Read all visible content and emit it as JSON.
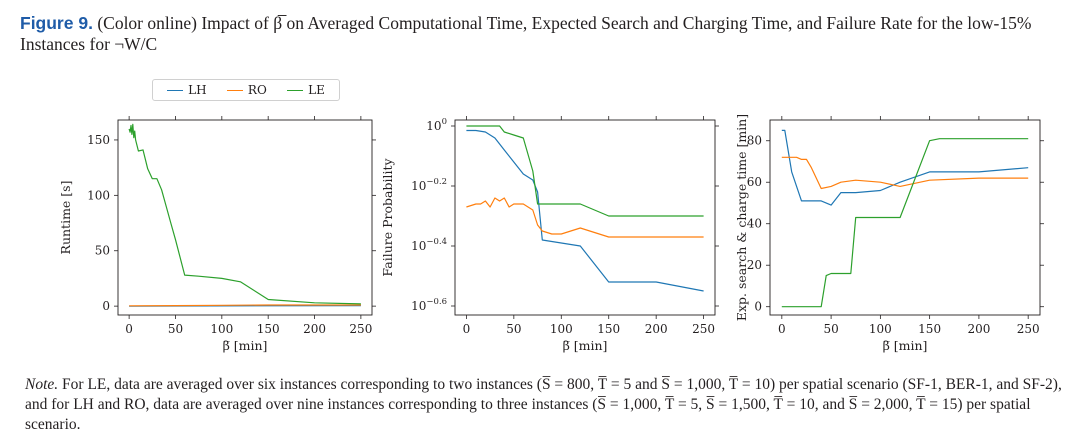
{
  "caption": {
    "label": "Figure 9.",
    "text": "(Color online) Impact of β̅ on Averaged Computational Time, Expected Search and Charging Time, and Failure Rate for the low-15% Instances for ¬W/C"
  },
  "legend": [
    {
      "name": "LH",
      "color": "#1f77b4"
    },
    {
      "name": "RO",
      "color": "#ff7f0e"
    },
    {
      "name": "LE",
      "color": "#2ca02c"
    }
  ],
  "chart_data": [
    {
      "type": "line",
      "ylabel": "Runtime [s]",
      "xlabel": "β̅ [min]",
      "xlim": [
        -12,
        262
      ],
      "ylim": [
        -8,
        168
      ],
      "xticks": [
        0,
        50,
        100,
        150,
        200,
        250
      ],
      "xtick_labels": [
        "0",
        "50",
        "100",
        "150",
        "200",
        "250"
      ],
      "yticks": [
        0,
        50,
        100,
        150
      ],
      "ytick_labels": [
        "0",
        "50",
        "100",
        "150"
      ],
      "series": [
        {
          "name": "LH",
          "x": [
            0,
            250
          ],
          "y": [
            0,
            0.5
          ]
        },
        {
          "name": "RO",
          "x": [
            0,
            50,
            100,
            150,
            200,
            250
          ],
          "y": [
            0.3,
            0.5,
            0.8,
            1.0,
            1.0,
            1.0
          ]
        },
        {
          "name": "LE",
          "x": [
            0,
            1,
            2,
            3,
            4,
            5,
            6,
            7,
            10,
            15,
            20,
            25,
            30,
            35,
            40,
            45,
            50,
            60,
            75,
            100,
            120,
            150,
            200,
            250
          ],
          "y": [
            160,
            157,
            163,
            155,
            164,
            152,
            158,
            150,
            140,
            141,
            124,
            115,
            115,
            105,
            90,
            75,
            60,
            28,
            27,
            25,
            22,
            6,
            3,
            2
          ]
        }
      ]
    },
    {
      "type": "line",
      "ylabel": "Failure Probability",
      "xlabel": "β̅ [min]",
      "log_y": true,
      "xlim": [
        -12,
        262
      ],
      "ylim": [
        -0.63,
        0.02
      ],
      "xticks": [
        0,
        50,
        100,
        150,
        200,
        250
      ],
      "xtick_labels": [
        "0",
        "50",
        "100",
        "150",
        "200",
        "250"
      ],
      "yticks": [
        0,
        -0.2,
        -0.4,
        -0.6
      ],
      "ytick_labels": [
        "0",
        "−0.2",
        "−0.4",
        "−0.6"
      ],
      "series": [
        {
          "name": "LH",
          "x": [
            0,
            10,
            20,
            30,
            40,
            50,
            60,
            70,
            75,
            80,
            100,
            120,
            150,
            200,
            250
          ],
          "y": [
            -0.015,
            -0.015,
            -0.02,
            -0.04,
            -0.08,
            -0.12,
            -0.16,
            -0.18,
            -0.22,
            -0.38,
            -0.39,
            -0.4,
            -0.52,
            -0.52,
            -0.55
          ]
        },
        {
          "name": "RO",
          "x": [
            0,
            10,
            15,
            20,
            25,
            30,
            35,
            40,
            45,
            50,
            60,
            70,
            75,
            80,
            90,
            100,
            110,
            120,
            150,
            200,
            250
          ],
          "y": [
            -0.27,
            -0.26,
            -0.26,
            -0.25,
            -0.27,
            -0.24,
            -0.25,
            -0.24,
            -0.27,
            -0.26,
            -0.26,
            -0.28,
            -0.33,
            -0.35,
            -0.36,
            -0.36,
            -0.35,
            -0.34,
            -0.37,
            -0.37,
            -0.37
          ]
        },
        {
          "name": "LE",
          "x": [
            0,
            35,
            40,
            50,
            60,
            70,
            75,
            80,
            100,
            120,
            150,
            200,
            250
          ],
          "y": [
            0,
            0,
            -0.02,
            -0.03,
            -0.04,
            -0.15,
            -0.26,
            -0.26,
            -0.26,
            -0.26,
            -0.3,
            -0.3,
            -0.3
          ]
        }
      ]
    },
    {
      "type": "line",
      "ylabel": "Exp. search & charge time [min]",
      "xlabel": "β̅ [min]",
      "xlim": [
        -12,
        262
      ],
      "ylim": [
        -4,
        90
      ],
      "xticks": [
        0,
        50,
        100,
        150,
        200,
        250
      ],
      "xtick_labels": [
        "0",
        "50",
        "100",
        "150",
        "200",
        "250"
      ],
      "yticks": [
        0,
        20,
        40,
        60,
        80
      ],
      "ytick_labels": [
        "0",
        "20",
        "40",
        "60",
        "80"
      ],
      "series": [
        {
          "name": "LH",
          "x": [
            0,
            3,
            10,
            20,
            30,
            40,
            50,
            60,
            75,
            100,
            120,
            150,
            200,
            250
          ],
          "y": [
            85,
            85,
            65,
            51,
            51,
            51,
            49,
            55,
            55,
            56,
            60,
            65,
            65,
            67
          ]
        },
        {
          "name": "RO",
          "x": [
            0,
            10,
            15,
            20,
            25,
            30,
            40,
            50,
            60,
            75,
            100,
            120,
            150,
            200,
            250
          ],
          "y": [
            72,
            72,
            72,
            71,
            71,
            67,
            57,
            58,
            60,
            61,
            60,
            58,
            61,
            62,
            62
          ]
        },
        {
          "name": "LE",
          "x": [
            0,
            35,
            40,
            45,
            50,
            60,
            70,
            75,
            80,
            100,
            120,
            150,
            160,
            200,
            250
          ],
          "y": [
            0,
            0,
            0,
            15,
            16,
            16,
            16,
            43,
            43,
            43,
            43,
            80,
            81,
            81,
            81
          ]
        }
      ]
    }
  ],
  "note": {
    "lead": "Note.",
    "text": "For LE, data are averaged over six instances corresponding to two instances (S̅ = 800, T̅ = 5 and S̅ = 1,000, T̅ = 10) per spatial scenario (SF-1, BER-1, and SF-2), and for LH and RO, data are averaged over nine instances corresponding to three instances (S̅ = 1,000, T̅ = 5, S̅ = 1,500, T̅ = 10, and S̅ = 2,000, T̅ = 15) per spatial scenario."
  }
}
